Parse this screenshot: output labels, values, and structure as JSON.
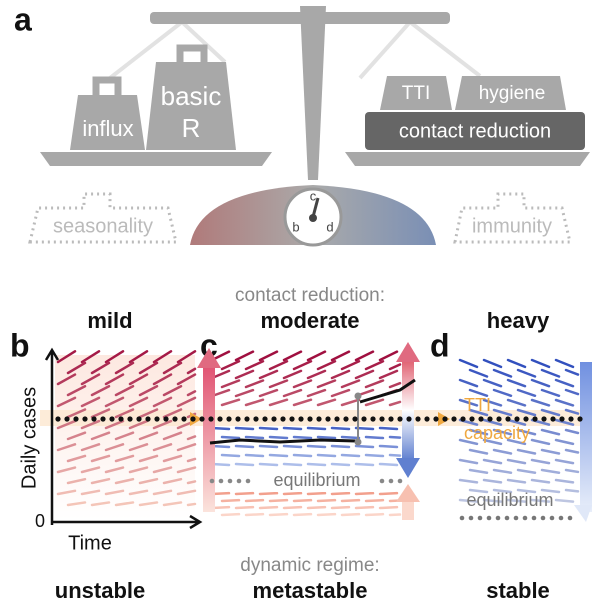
{
  "scale": {
    "label": "a",
    "left_weights": [
      "influx",
      "basic",
      "R"
    ],
    "right_weights": [
      "TTI",
      "hygiene",
      "contact reduction"
    ],
    "left_hidden": "seasonality",
    "right_hidden": "immunity",
    "gauge": [
      "b",
      "c",
      "d"
    ]
  },
  "regimes": {
    "top_caption": "contact reduction:",
    "bottom_caption": "dynamic regime:",
    "panels": [
      {
        "label": "b",
        "top": "mild",
        "bottom": "unstable"
      },
      {
        "label": "c",
        "top": "moderate",
        "bottom": "metastable"
      },
      {
        "label": "d",
        "top": "heavy",
        "bottom": "stable"
      }
    ],
    "y_axis": "Daily cases",
    "y_zero": "0",
    "x_axis": "Time",
    "threshold": [
      "TTI",
      "capacity"
    ],
    "equilibrium": "equilibrium"
  }
}
